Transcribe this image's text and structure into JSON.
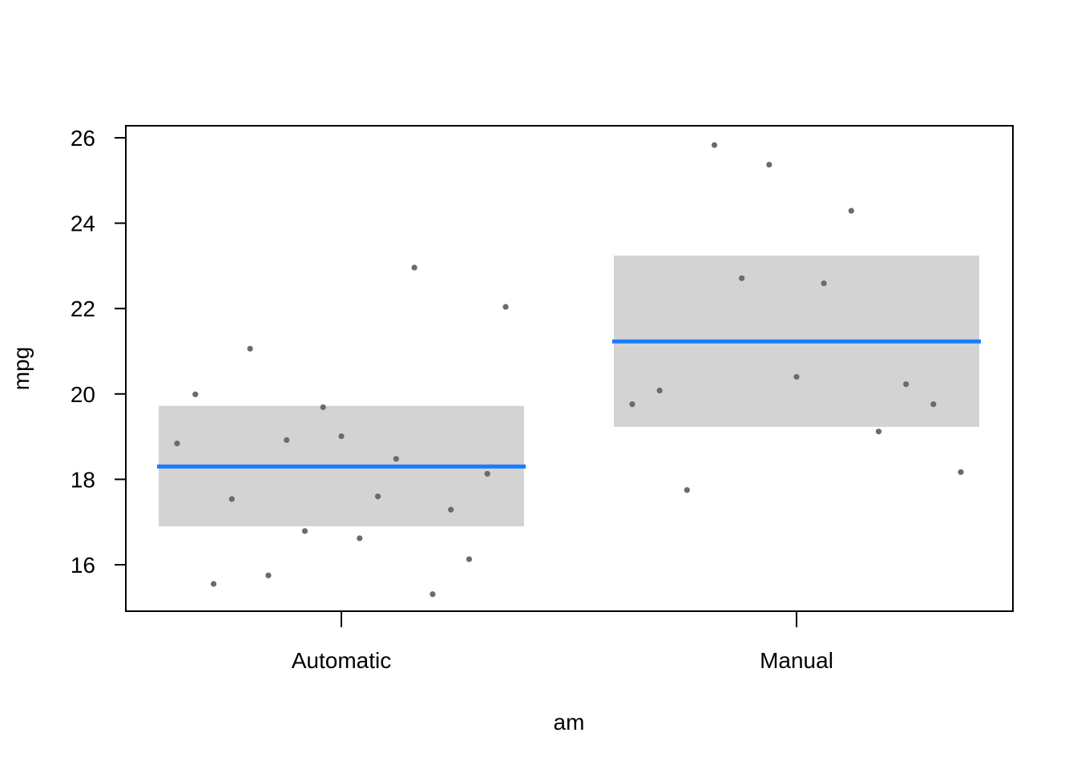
{
  "chart_data": {
    "type": "scatter",
    "title": "",
    "xlabel": "am",
    "ylabel": "mpg",
    "categories": [
      "Automatic",
      "Manual"
    ],
    "ylim": [
      15,
      26.3
    ],
    "yticks": [
      16,
      18,
      20,
      22,
      24,
      26
    ],
    "grid": false,
    "legend": "none",
    "colors": {
      "fit_line": "#1a7cff",
      "confidence_band": "#d3d3d3",
      "points": "#6b6b6b",
      "axis": "#000000"
    },
    "fits": [
      {
        "category": "Automatic",
        "mean": 18.3,
        "lower": 16.9,
        "upper": 19.72
      },
      {
        "category": "Manual",
        "mean": 21.23,
        "lower": 19.23,
        "upper": 23.24
      }
    ],
    "points": [
      {
        "category": "Automatic",
        "values": [
          18.84,
          19.99,
          15.55,
          17.54,
          21.06,
          15.75,
          18.92,
          16.79,
          19.69,
          19.01,
          16.62,
          17.6,
          18.48,
          22.96,
          15.31,
          17.29,
          16.13,
          18.13,
          22.04
        ]
      },
      {
        "category": "Manual",
        "values": [
          19.76,
          20.08,
          17.75,
          25.83,
          22.71,
          25.37,
          20.4,
          22.59,
          24.29,
          19.12,
          20.23,
          19.76,
          18.17
        ]
      }
    ]
  }
}
